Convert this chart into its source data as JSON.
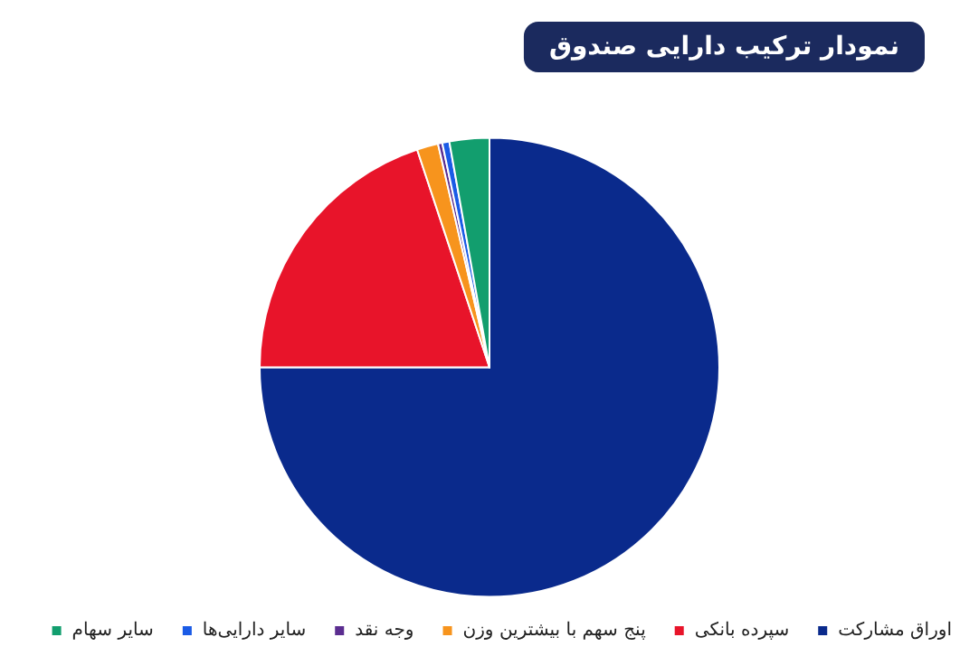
{
  "chart_data": {
    "type": "pie",
    "title": "نمودار ترکیب دارایی صندوق",
    "categories": [
      "اوراق مشارکت",
      "سپرده بانکی",
      "پنج سهم با بیشترین وزن",
      "وجه نقد",
      "سایر دارایی‌ها",
      "سایر سهام"
    ],
    "values": [
      75,
      19.9,
      1.5,
      0.3,
      0.5,
      2.8
    ],
    "colors": [
      "#0a2a8c",
      "#e8142a",
      "#f7941d",
      "#5b2d90",
      "#1a5be6",
      "#129e6e"
    ],
    "legend": "bottom"
  }
}
